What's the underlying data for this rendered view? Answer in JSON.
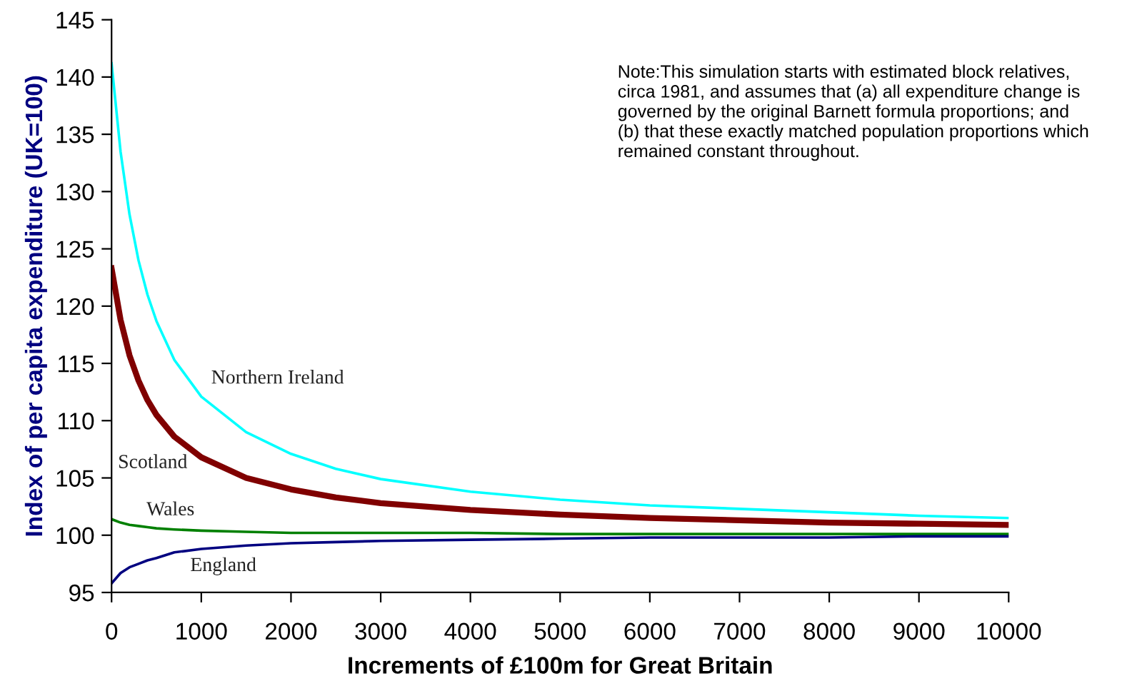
{
  "chart_data": {
    "type": "line",
    "xlabel": "Increments of £100m for Great Britain",
    "ylabel": "Index of per capita expenditure (UK=100)",
    "x": [
      0,
      100,
      200,
      300,
      400,
      500,
      700,
      1000,
      1500,
      2000,
      2500,
      3000,
      4000,
      5000,
      6000,
      7000,
      8000,
      9000,
      10000
    ],
    "series": [
      {
        "name": "Northern Ireland",
        "color": "#00ffff",
        "values": [
          141.2,
          133.5,
          128,
          124,
          121,
          118.7,
          115.3,
          112.1,
          109,
          107.1,
          105.8,
          104.9,
          103.8,
          103.1,
          102.6,
          102.3,
          102,
          101.7,
          101.5
        ]
      },
      {
        "name": "Scotland",
        "color": "#800000",
        "values": [
          123.3,
          118.8,
          115.7,
          113.5,
          111.8,
          110.5,
          108.6,
          106.8,
          105,
          104,
          103.3,
          102.8,
          102.2,
          101.8,
          101.5,
          101.3,
          101.1,
          101,
          100.9
        ]
      },
      {
        "name": "Wales",
        "color": "#008000",
        "values": [
          101.4,
          101.1,
          100.9,
          100.8,
          100.7,
          100.6,
          100.5,
          100.4,
          100.3,
          100.2,
          100.2,
          100.2,
          100.2,
          100.1,
          100.1,
          100.1,
          100.1,
          100.1,
          100.1
        ]
      },
      {
        "name": "England",
        "color": "#000080",
        "values": [
          95.8,
          96.7,
          97.2,
          97.5,
          97.8,
          98,
          98.5,
          98.8,
          99.1,
          99.3,
          99.4,
          99.5,
          99.6,
          99.7,
          99.8,
          99.8,
          99.8,
          99.9,
          99.9
        ]
      }
    ],
    "annotations": [
      "Note:This simulation starts with estimated block relatives,\ncirca 1981, and assumes that (a) all expenditure change is\ngoverned by the original Barnett formula proportions; and\n(b) that these exactly matched population proportions which\nremained constant throughout."
    ],
    "xlim": [
      0,
      10000
    ],
    "xticks": [
      0,
      1000,
      2000,
      3000,
      4000,
      5000,
      6000,
      7000,
      8000,
      9000,
      10000
    ],
    "ylim": [
      95,
      145
    ],
    "yticks": [
      95,
      100,
      105,
      110,
      115,
      120,
      125,
      130,
      135,
      140,
      145
    ],
    "grid": false,
    "legend": false,
    "marker": "none",
    "line_style": "solid"
  }
}
